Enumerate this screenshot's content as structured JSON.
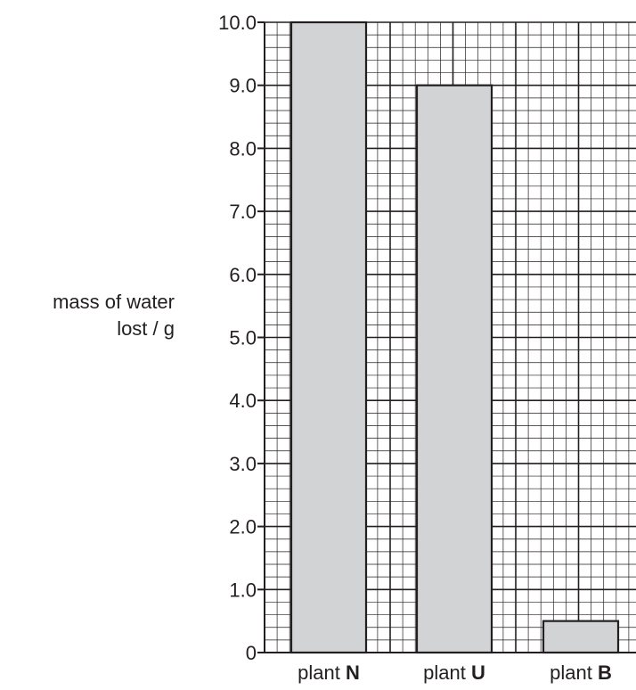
{
  "chart_data": {
    "type": "bar",
    "categories": [
      {
        "prefix": "plant ",
        "letter": "N"
      },
      {
        "prefix": "plant ",
        "letter": "U"
      },
      {
        "prefix": "plant ",
        "letter": "B"
      }
    ],
    "values": [
      10.0,
      9.0,
      0.5
    ],
    "ylabel_line1": "mass of water",
    "ylabel_line2": "lost / g",
    "ylim": [
      0,
      10
    ],
    "yticks": [
      "0",
      "1.0",
      "2.0",
      "3.0",
      "4.0",
      "5.0",
      "6.0",
      "7.0",
      "8.0",
      "9.0",
      "10.0"
    ],
    "grid": true,
    "bar_color": "#d1d3d4",
    "grid_color": "#231f20"
  }
}
